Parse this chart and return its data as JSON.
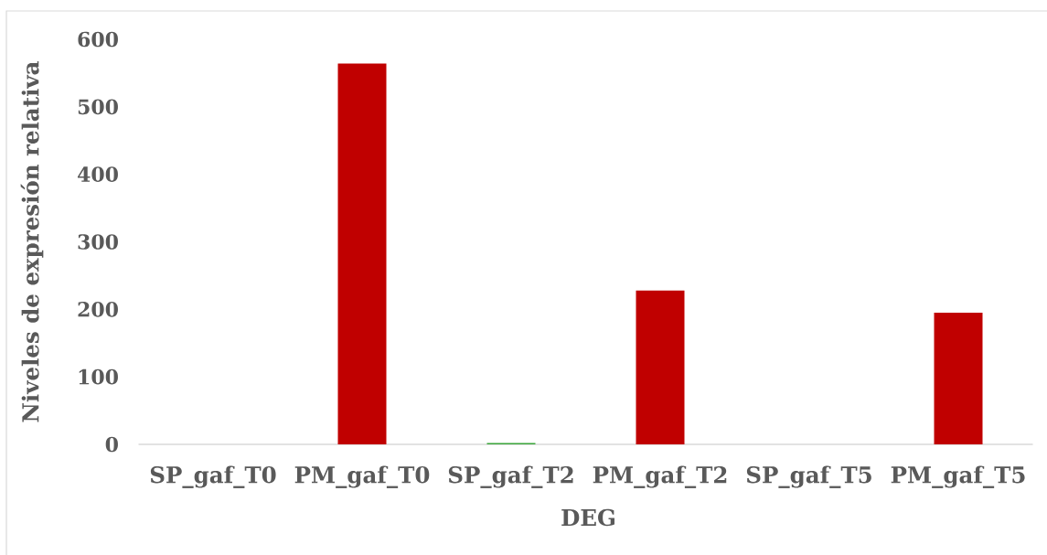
{
  "chart_data": {
    "type": "bar",
    "xlabel": "DEG",
    "ylabel": "Niveles de expresión relativa",
    "categories": [
      "SP_gaf_T0",
      "PM_gaf_T0",
      "SP_gaf_T2",
      "PM_gaf_T2",
      "SP_gaf_T5",
      "PM_gaf_T5"
    ],
    "values": [
      0,
      564,
      2,
      228,
      0,
      195
    ],
    "colors": [
      "#3aa63a",
      "#c00000",
      "#3aa63a",
      "#c00000",
      "#3aa63a",
      "#c00000"
    ],
    "ylim": [
      0,
      600
    ],
    "yticks": [
      0,
      100,
      200,
      300,
      400,
      500,
      600
    ]
  }
}
